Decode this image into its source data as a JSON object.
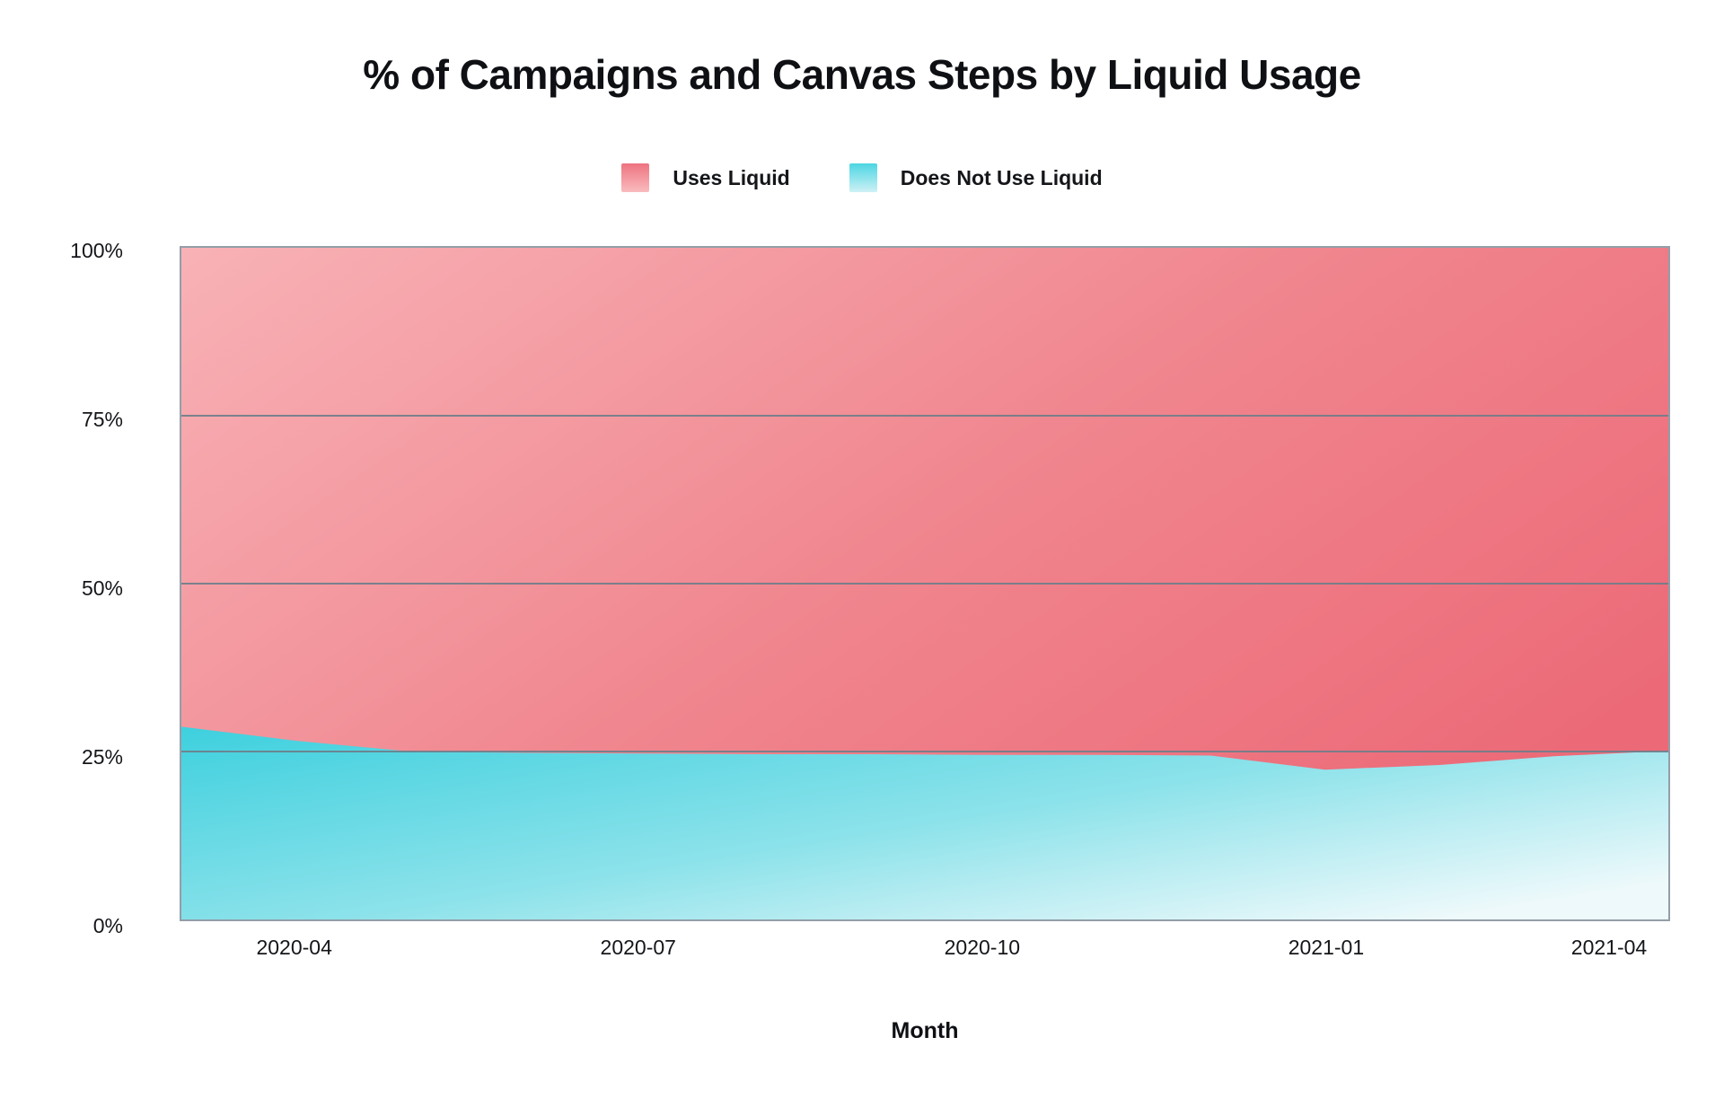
{
  "title": "% of Campaigns and Canvas Steps by Liquid Usage",
  "legend": {
    "items": [
      {
        "label": "Uses Liquid",
        "swatch_top": "#ee7380",
        "swatch_bottom": "#f9bcbf"
      },
      {
        "label": "Does Not Use Liquid",
        "swatch_top": "#4cd5e2",
        "swatch_bottom": "#cdf1f5"
      }
    ]
  },
  "chart_data": {
    "type": "area",
    "stacked": true,
    "title": "% of Campaigns and Canvas Steps by Liquid Usage",
    "xlabel": "Month",
    "ylabel": "",
    "ylim": [
      0,
      100
    ],
    "grid": true,
    "legend_position": "top",
    "x": [
      "2020-03",
      "2020-04",
      "2020-05",
      "2020-06",
      "2020-07",
      "2020-08",
      "2020-09",
      "2020-10",
      "2020-11",
      "2020-12",
      "2021-01",
      "2021-02",
      "2021-03",
      "2021-04"
    ],
    "series": [
      {
        "name": "Uses Liquid",
        "values": [
          71.3,
          73.4,
          75.0,
          75.2,
          75.3,
          75.4,
          75.4,
          75.5,
          75.5,
          75.6,
          77.7,
          77.0,
          75.7,
          74.9
        ]
      },
      {
        "name": "Does Not Use Liquid",
        "values": [
          28.7,
          26.6,
          25.0,
          24.8,
          24.7,
          24.6,
          24.6,
          24.5,
          24.5,
          24.4,
          22.3,
          23.0,
          24.3,
          25.1
        ]
      }
    ],
    "ytick_labels": [
      "100%",
      "75%",
      "50%",
      "25%",
      "0%"
    ],
    "xtick_labels": [
      "2020-04",
      "2020-07",
      "2020-10",
      "2021-01",
      "2021-04"
    ],
    "xtick_indices": [
      1,
      4,
      7,
      10,
      13
    ],
    "colors": {
      "uses_liquid_gradient": [
        "#f8b2b6",
        "#f0858e",
        "#ec6a78"
      ],
      "does_not_use_gradient": [
        "#3ed0de",
        "#8ce2ea",
        "#edf9fb"
      ],
      "gridline": "#6e7d8a",
      "plot_border": "#939ea8",
      "text": "#14161a"
    }
  }
}
